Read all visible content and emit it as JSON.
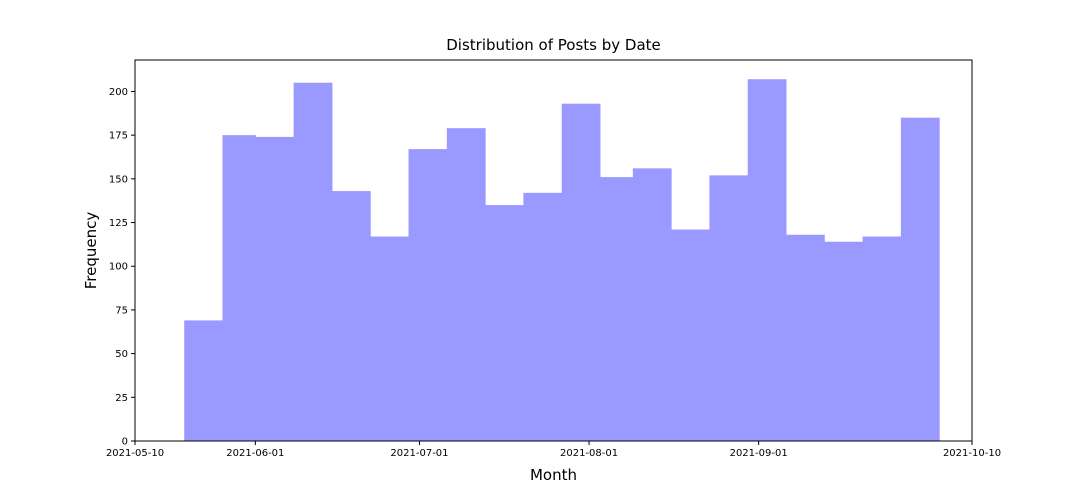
{
  "chart_data": {
    "type": "bar",
    "subtype": "histogram",
    "title": "Distribution of Posts by Date",
    "xlabel": "Month",
    "ylabel": "Frequency",
    "bar_color": "#9999ff",
    "xlim": [
      "2021-05-10",
      "2021-10-10"
    ],
    "ylim": [
      0,
      218
    ],
    "x_ticks": [
      {
        "value": "2021-05-10",
        "label": "2021-05-10"
      },
      {
        "value": "2021-06-01",
        "label": "2021-06-01"
      },
      {
        "value": "2021-07-01",
        "label": "2021-07-01"
      },
      {
        "value": "2021-08-01",
        "label": "2021-08-01"
      },
      {
        "value": "2021-09-01",
        "label": "2021-09-01"
      },
      {
        "value": "2021-10-10",
        "label": "2021-10-10"
      }
    ],
    "y_ticks": [
      0,
      25,
      50,
      75,
      100,
      125,
      150,
      175,
      200
    ],
    "bins": [
      {
        "start": "2021-05-19",
        "end": "2021-05-26",
        "count": 69
      },
      {
        "start": "2021-05-26",
        "end": "2021-06-01",
        "count": 175
      },
      {
        "start": "2021-06-01",
        "end": "2021-06-08",
        "count": 174
      },
      {
        "start": "2021-06-08",
        "end": "2021-06-15",
        "count": 205
      },
      {
        "start": "2021-06-15",
        "end": "2021-06-22",
        "count": 143
      },
      {
        "start": "2021-06-22",
        "end": "2021-06-29",
        "count": 117
      },
      {
        "start": "2021-06-29",
        "end": "2021-07-06",
        "count": 167
      },
      {
        "start": "2021-07-06",
        "end": "2021-07-13",
        "count": 179
      },
      {
        "start": "2021-07-13",
        "end": "2021-07-20",
        "count": 135
      },
      {
        "start": "2021-07-20",
        "end": "2021-07-27",
        "count": 142
      },
      {
        "start": "2021-07-27",
        "end": "2021-08-03",
        "count": 193
      },
      {
        "start": "2021-08-03",
        "end": "2021-08-09",
        "count": 151
      },
      {
        "start": "2021-08-09",
        "end": "2021-08-16",
        "count": 156
      },
      {
        "start": "2021-08-16",
        "end": "2021-08-23",
        "count": 121
      },
      {
        "start": "2021-08-23",
        "end": "2021-08-30",
        "count": 152
      },
      {
        "start": "2021-08-30",
        "end": "2021-09-06",
        "count": 207
      },
      {
        "start": "2021-09-06",
        "end": "2021-09-13",
        "count": 118
      },
      {
        "start": "2021-09-13",
        "end": "2021-09-20",
        "count": 114
      },
      {
        "start": "2021-09-20",
        "end": "2021-09-27",
        "count": 117
      },
      {
        "start": "2021-09-27",
        "end": "2021-10-04",
        "count": 185
      }
    ],
    "grid": false,
    "legend": "none"
  }
}
